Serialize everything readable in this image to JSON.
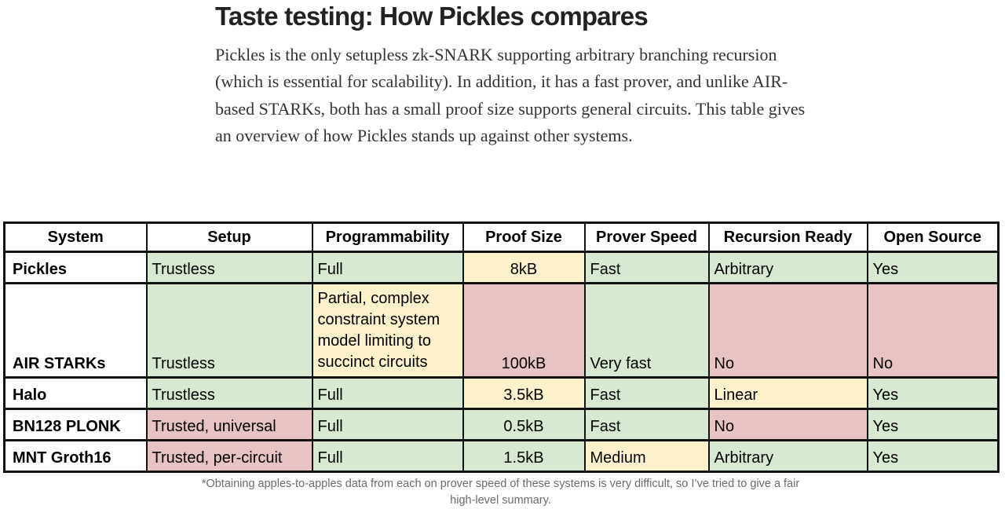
{
  "title": "Taste testing: How Pickles compares",
  "intro": "Pickles is the only setupless zk-SNARK supporting arbitrary branching recursion (which is essential for scalability). In addition, it has a fast prover, and unlike AIR-based STARKs, both has a small proof size supports general circuits. This table gives an overview of how Pickles stands up against other systems.",
  "table": {
    "headers": [
      "System",
      "Setup",
      "Programmability",
      "Proof Size",
      "Prover Speed",
      "Recursion Ready",
      "Open Source"
    ],
    "rows": [
      {
        "system": "Pickles",
        "setup": "Trustless",
        "programmability": "Full",
        "proof_size": "8kB",
        "prover_speed": "Fast",
        "recursion": "Arbitrary",
        "open_source": "Yes"
      },
      {
        "system": "AIR STARKs",
        "setup": "Trustless",
        "programmability": "Partial, complex constraint system model limiting to succinct circuits",
        "proof_size": "100kB",
        "prover_speed": "Very fast",
        "recursion": "No",
        "open_source": "No"
      },
      {
        "system": "Halo",
        "setup": "Trustless",
        "programmability": "Full",
        "proof_size": "3.5kB",
        "prover_speed": "Fast",
        "recursion": "Linear",
        "open_source": "Yes"
      },
      {
        "system": "BN128 PLONK",
        "setup": "Trusted, universal",
        "programmability": "Full",
        "proof_size": "0.5kB",
        "prover_speed": "Fast",
        "recursion": "No",
        "open_source": "Yes"
      },
      {
        "system": "MNT Groth16",
        "setup": "Trusted, per-circuit",
        "programmability": "Full",
        "proof_size": "1.5kB",
        "prover_speed": "Medium",
        "recursion": "Arbitrary",
        "open_source": "Yes"
      }
    ]
  },
  "colors": {
    "good": "#d8e9d2",
    "medium": "#fdf2cc",
    "bad": "#e8c3c4"
  },
  "footnote": "*Obtaining apples-to-apples data from each on prover speed of these systems is very difficult, so I’ve tried to give a fair high-level summary."
}
